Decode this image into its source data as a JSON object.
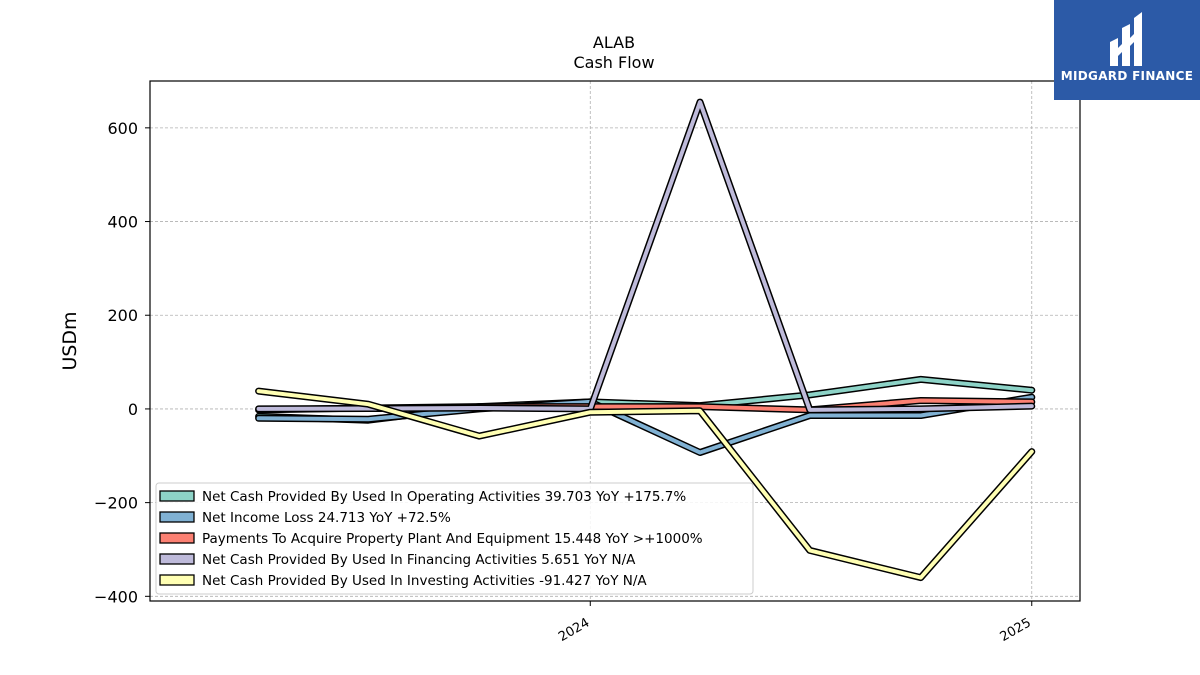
{
  "brand": {
    "name": "MIDGARD FINANCE"
  },
  "chart_data": {
    "type": "line",
    "title": "ALAB",
    "subtitle": "Cash Flow",
    "ylabel": "USDm",
    "xlabel": "",
    "ylim": [
      -410,
      700
    ],
    "yticks": [
      -400,
      -200,
      0,
      200,
      400,
      600
    ],
    "ytick_labels": [
      "−400",
      "−200",
      "0",
      "200",
      "400",
      "600"
    ],
    "x": [
      "2023-04-01",
      "2023-07-01",
      "2023-10-01",
      "2024-01-01",
      "2024-04-01",
      "2024-07-01",
      "2024-10-01",
      "2025-01-01"
    ],
    "xlim": [
      "2023-01-01",
      "2025-02-10"
    ],
    "xticks": [
      "2024-01-01",
      "2025-01-01"
    ],
    "xtick_labels": [
      "2024",
      "2025"
    ],
    "grid": true,
    "legend_position": "lower-left",
    "series": [
      {
        "name": "Net Cash Provided By Used In Operating Activities  39.703 YoY +175.7%",
        "color": "#8dd3c7",
        "values": [
          -16,
          -24,
          5,
          15,
          7,
          30,
          63,
          40
        ]
      },
      {
        "name": "Net Income Loss  24.713 YoY +72.5%",
        "color": "#80b1d3",
        "values": [
          -20,
          -22,
          0,
          15,
          -93,
          -14,
          -14,
          25
        ]
      },
      {
        "name": "Payments To Acquire Property Plant And Equipment  15.448 YoY >+1000%",
        "color": "#fb8072",
        "values": [
          -2,
          2,
          5,
          5,
          5,
          -2,
          18,
          15
        ]
      },
      {
        "name": "Net Cash Provided By Used In Financing Activities  5.651 YoY N/A",
        "color": "#bebada",
        "values": [
          0,
          1,
          2,
          0,
          655,
          -2,
          0,
          6
        ]
      },
      {
        "name": "Net Cash Provided By Used In Investing Activities  -91.427 YoY N/A",
        "color": "#ffffb3",
        "values": [
          38,
          10,
          -58,
          -7,
          -4,
          -302,
          -360,
          -91
        ]
      }
    ]
  }
}
